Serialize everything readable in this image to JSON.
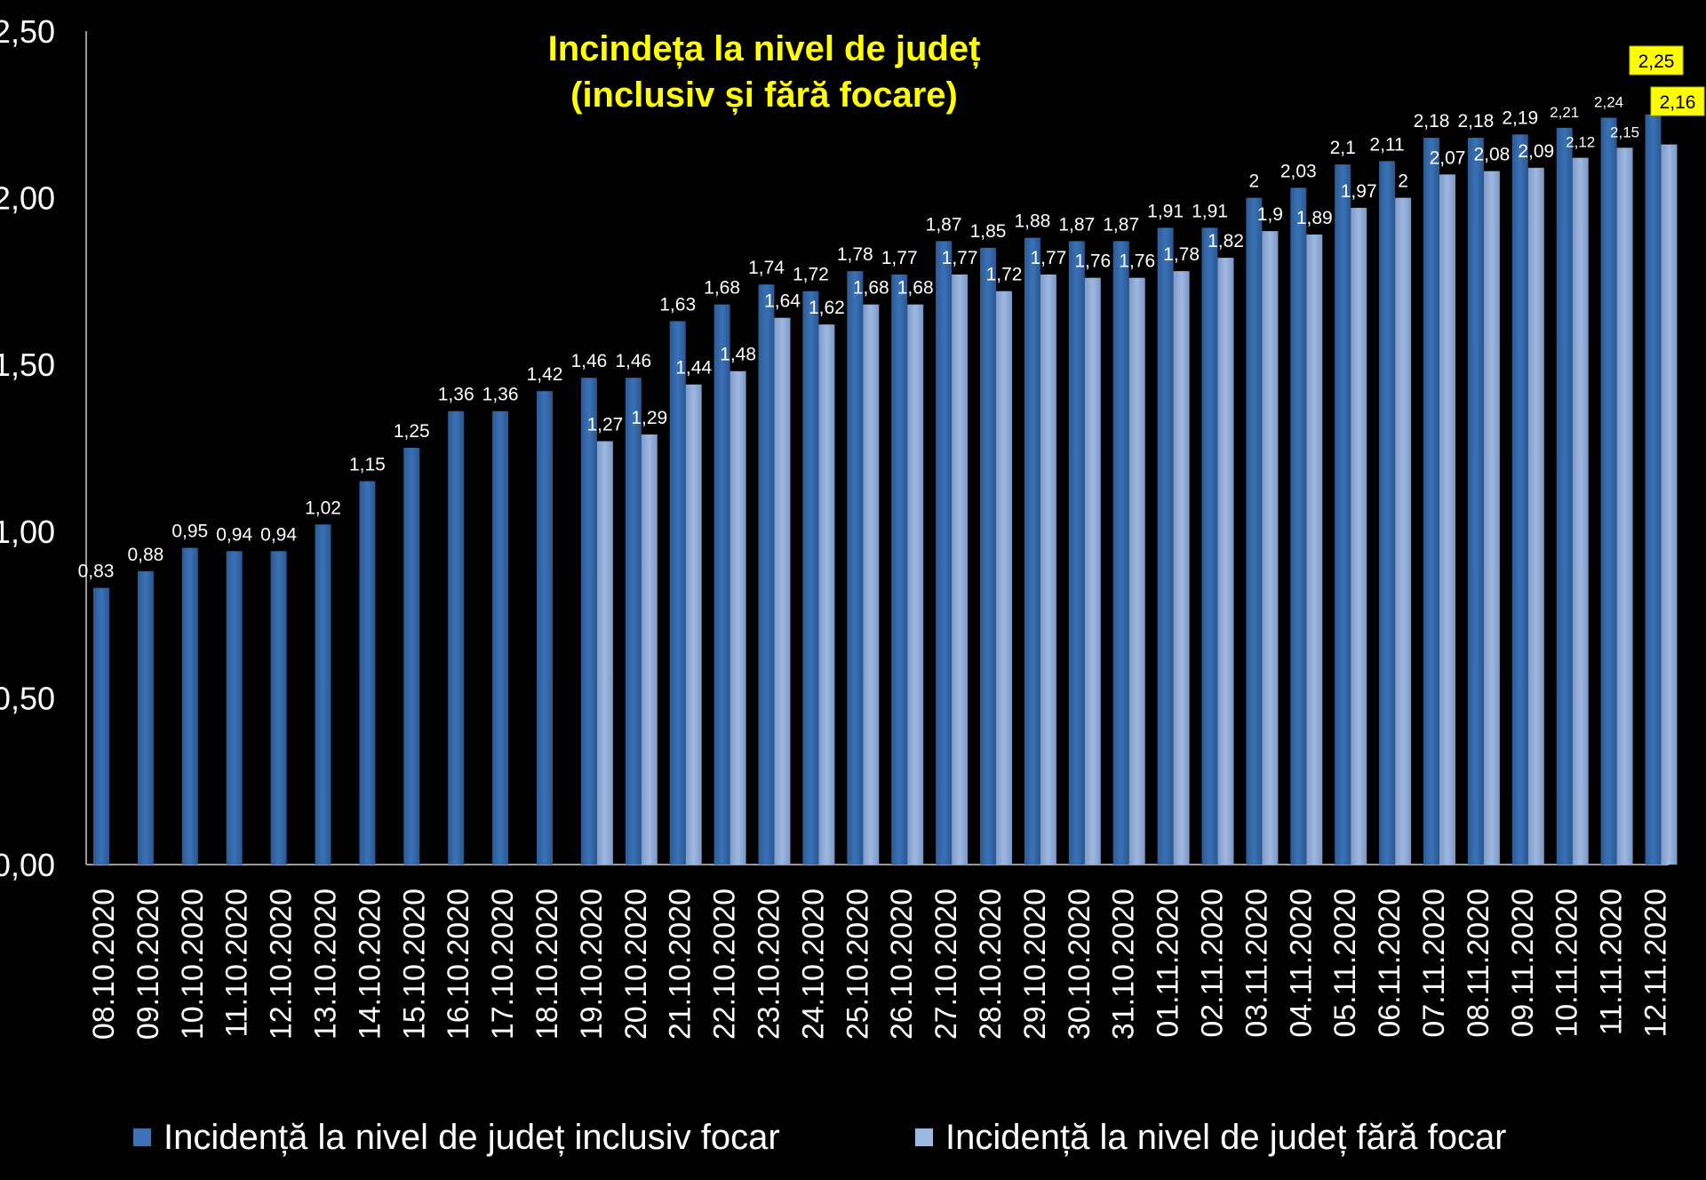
{
  "chart_data": {
    "type": "bar",
    "title": "Incindeța la nivel de județ",
    "subtitle": "(inclusiv și fără focare)",
    "xlabel": "",
    "ylabel": "",
    "ylim": [
      0,
      2.5
    ],
    "yticks": [
      "0,00",
      "0,50",
      "1,00",
      "1,50",
      "2,00",
      "2,50"
    ],
    "grid": false,
    "legend_position": "bottom",
    "categories": [
      "08.10.2020",
      "09.10.2020",
      "10.10.2020",
      "11.10.2020",
      "12.10.2020",
      "13.10.2020",
      "14.10.2020",
      "15.10.2020",
      "16.10.2020",
      "17.10.2020",
      "18.10.2020",
      "19.10.2020",
      "20.10.2020",
      "21.10.2020",
      "22.10.2020",
      "23.10.2020",
      "24.10.2020",
      "25.10.2020",
      "26.10.2020",
      "27.10.2020",
      "28.10.2020",
      "29.10.2020",
      "30.10.2020",
      "31.10.2020",
      "01.11.2020",
      "02.11.2020",
      "03.11.2020",
      "04.11.2020",
      "05.11.2020",
      "06.11.2020",
      "07.11.2020",
      "08.11.2020",
      "09.11.2020",
      "10.11.2020",
      "11.11.2020",
      "12.11.2020"
    ],
    "series": [
      {
        "name": "Incidență la nivel de județ inclusiv focar",
        "color": "#3a72b6",
        "values": [
          0.83,
          0.88,
          0.95,
          0.94,
          0.94,
          1.02,
          1.15,
          1.25,
          1.36,
          1.36,
          1.42,
          1.46,
          1.46,
          1.63,
          1.68,
          1.74,
          1.72,
          1.78,
          1.77,
          1.87,
          1.85,
          1.88,
          1.87,
          1.87,
          1.91,
          1.91,
          2,
          2.03,
          2.1,
          2.11,
          2.18,
          2.18,
          2.19,
          2.21,
          2.24,
          2.25
        ],
        "labels": [
          "0,83",
          "0,88",
          "0,95",
          "0,94",
          "0,94",
          "1,02",
          "1,15",
          "1,25",
          "1,36",
          "1,36",
          "1,42",
          "1,46",
          "1,46",
          "1,63",
          "1,68",
          "1,74",
          "1,72",
          "1,78",
          "1,77",
          "1,87",
          "1,85",
          "1,88",
          "1,87",
          "1,87",
          "1,91",
          "1,91",
          "2",
          "2,03",
          "2,1",
          "2,11",
          "2,18",
          "2,18",
          "2,19",
          "2,21",
          "2,24",
          "2,25"
        ]
      },
      {
        "name": "Incidență la nivel de județ fără focar",
        "color": "#9fb8e0",
        "values": [
          null,
          null,
          null,
          null,
          null,
          null,
          null,
          null,
          null,
          null,
          null,
          1.27,
          1.29,
          1.44,
          1.48,
          1.64,
          1.62,
          1.68,
          1.68,
          1.77,
          1.72,
          1.77,
          1.76,
          1.76,
          1.78,
          1.82,
          1.9,
          1.89,
          1.97,
          2,
          2.07,
          2.08,
          2.09,
          2.12,
          2.15,
          2.16
        ],
        "labels": [
          null,
          null,
          null,
          null,
          null,
          null,
          null,
          null,
          null,
          null,
          null,
          "1,27",
          "1,29",
          "1,44",
          "1,48",
          "1,64",
          "1,62",
          "1,68",
          "1,68",
          "1,77",
          "1,72",
          "1,77",
          "1,76",
          "1,76",
          "1,78",
          "1,82",
          "1,9",
          "1,89",
          "1,97",
          "2",
          "2,07",
          "2,08",
          "2,09",
          "2,12",
          "2,15",
          "2,16"
        ]
      }
    ],
    "highlight_color": "#ffff00"
  }
}
